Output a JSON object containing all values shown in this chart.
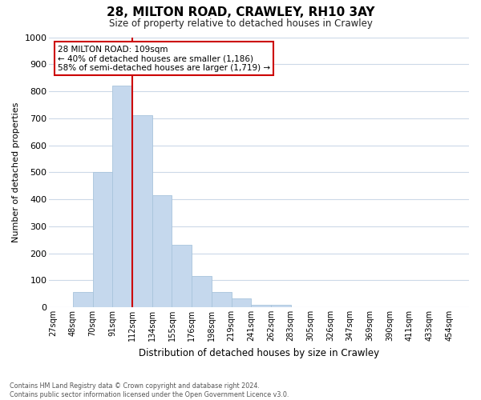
{
  "title": "28, MILTON ROAD, CRAWLEY, RH10 3AY",
  "subtitle": "Size of property relative to detached houses in Crawley",
  "xlabel": "Distribution of detached houses by size in Crawley",
  "ylabel": "Number of detached properties",
  "bin_labels": [
    "27sqm",
    "48sqm",
    "70sqm",
    "91sqm",
    "112sqm",
    "134sqm",
    "155sqm",
    "176sqm",
    "198sqm",
    "219sqm",
    "241sqm",
    "262sqm",
    "283sqm",
    "305sqm",
    "326sqm",
    "347sqm",
    "369sqm",
    "390sqm",
    "411sqm",
    "433sqm",
    "454sqm"
  ],
  "bar_values": [
    0,
    55,
    500,
    820,
    710,
    415,
    230,
    115,
    55,
    32,
    10,
    10,
    0,
    0,
    0,
    0,
    0,
    0,
    0,
    0,
    0
  ],
  "bar_color": "#c5d8ed",
  "bar_edge_color": "#a8c4dc",
  "vline_x": 4.0,
  "vline_color": "#cc0000",
  "annotation_text": "28 MILTON ROAD: 109sqm\n← 40% of detached houses are smaller (1,186)\n58% of semi-detached houses are larger (1,719) →",
  "annotation_box_color": "#ffffff",
  "annotation_box_edge": "#cc0000",
  "ylim": [
    0,
    1000
  ],
  "yticks": [
    0,
    100,
    200,
    300,
    400,
    500,
    600,
    700,
    800,
    900,
    1000
  ],
  "footer_line1": "Contains HM Land Registry data © Crown copyright and database right 2024.",
  "footer_line2": "Contains public sector information licensed under the Open Government Licence v3.0.",
  "bg_color": "#ffffff",
  "grid_color": "#ccd9e8"
}
